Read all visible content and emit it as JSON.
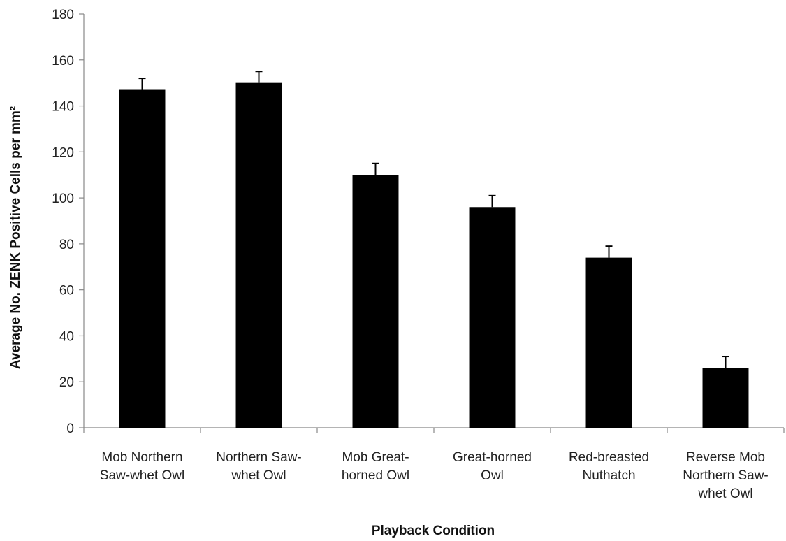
{
  "chart_data": {
    "type": "bar",
    "categories": [
      [
        "Mob Northern",
        "Saw-whet Owl"
      ],
      [
        "Northern Saw-",
        "whet Owl"
      ],
      [
        "Mob Great-",
        "horned Owl"
      ],
      [
        "Great-horned",
        "Owl"
      ],
      [
        "Red-breasted",
        "Nuthatch"
      ],
      [
        "Reverse Mob",
        "Northern Saw-",
        "whet Owl"
      ]
    ],
    "values": [
      147,
      150,
      110,
      96,
      74,
      26
    ],
    "errors": [
      5,
      5,
      5,
      5,
      5,
      5
    ],
    "xlabel": "Playback Condition",
    "ylabel": "Average No. ZENK Positive Cells per mm²",
    "ylim": [
      0,
      180
    ],
    "yticks": [
      0,
      20,
      40,
      60,
      80,
      100,
      120,
      140,
      160,
      180
    ],
    "grid": false,
    "legend": "none",
    "bar_color": "#000000"
  }
}
